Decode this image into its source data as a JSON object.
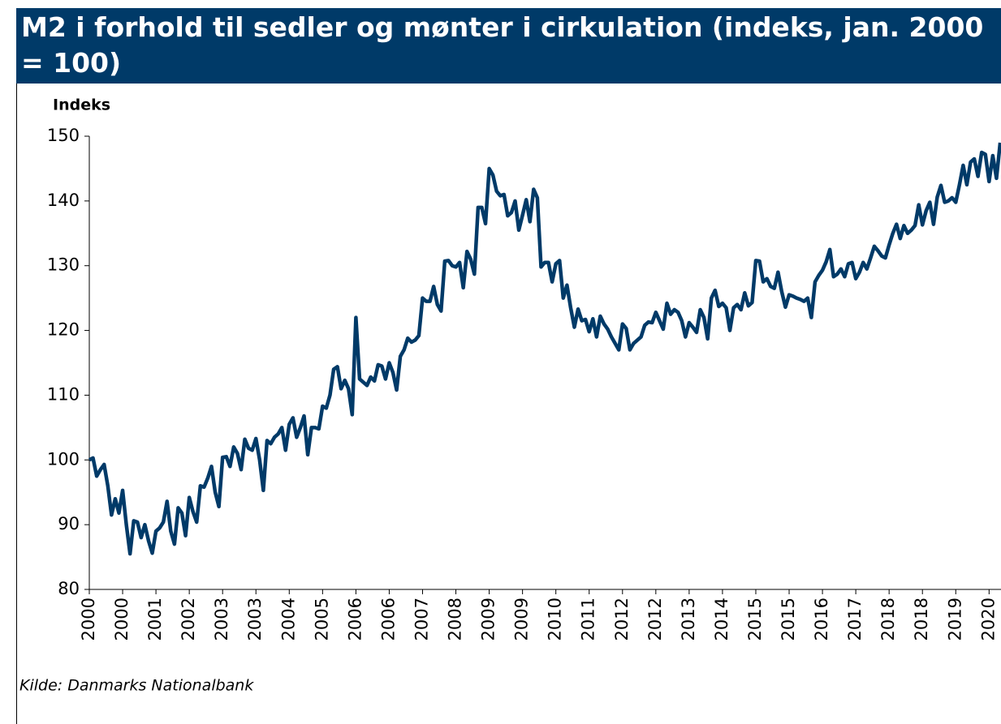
{
  "chart_data": {
    "type": "line",
    "title": "M2 i forhold til sedler og mønter i cirkulation (indeks, jan. 2000 = 100)",
    "ylabel": "Indeks",
    "source": "Kilde: Danmarks Nationalbank",
    "ylim": [
      80,
      150
    ],
    "yticks": [
      80,
      90,
      100,
      110,
      120,
      130,
      140,
      150
    ],
    "categories": [
      "2000",
      null,
      null,
      null,
      null,
      null,
      null,
      null,
      null,
      "2000",
      null,
      null,
      null,
      null,
      null,
      null,
      null,
      null,
      "2001",
      null,
      null,
      null,
      null,
      null,
      null,
      null,
      null,
      "2002",
      null,
      null,
      null,
      null,
      null,
      null,
      null,
      null,
      "2003",
      null,
      null,
      null,
      null,
      null,
      null,
      null,
      null,
      "2003",
      null,
      null,
      null,
      null,
      null,
      null,
      null,
      null,
      "2004",
      null,
      null,
      null,
      null,
      null,
      null,
      null,
      null,
      "2005",
      null,
      null,
      null,
      null,
      null,
      null,
      null,
      null,
      "2006",
      null,
      null,
      null,
      null,
      null,
      null,
      null,
      null,
      "2006",
      null,
      null,
      null,
      null,
      null,
      null,
      null,
      null,
      "2007",
      null,
      null,
      null,
      null,
      null,
      null,
      null,
      null,
      "2008",
      null,
      null,
      null,
      null,
      null,
      null,
      null,
      null,
      "2009",
      null,
      null,
      null,
      null,
      null,
      null,
      null,
      null,
      "2009",
      null,
      null,
      null,
      null,
      null,
      null,
      null,
      null,
      "2010",
      null,
      null,
      null,
      null,
      null,
      null,
      null,
      null,
      "2011",
      null,
      null,
      null,
      null,
      null,
      null,
      null,
      null,
      "2012",
      null,
      null,
      null,
      null,
      null,
      null,
      null,
      null,
      "2012",
      null,
      null,
      null,
      null,
      null,
      null,
      null,
      null,
      "2013",
      null,
      null,
      null,
      null,
      null,
      null,
      null,
      null,
      "2014",
      null,
      null,
      null,
      null,
      null,
      null,
      null,
      null,
      "2015",
      null,
      null,
      null,
      null,
      null,
      null,
      null,
      null,
      "2015",
      null,
      null,
      null,
      null,
      null,
      null,
      null,
      null,
      "2016",
      null,
      null,
      null,
      null,
      null,
      null,
      null,
      null,
      "2017",
      null,
      null,
      null,
      null,
      null,
      null,
      null,
      null,
      "2018",
      null,
      null,
      null,
      null,
      null,
      null,
      null,
      null,
      "2018",
      null,
      null,
      null,
      null,
      null,
      null,
      null,
      null,
      "2019",
      null,
      null,
      null,
      null,
      null,
      null,
      null,
      null,
      "2020",
      null,
      null,
      null
    ],
    "series": [
      {
        "name": "M2 i forhold til sedler og mønter",
        "color": "#003a68",
        "values": [
          100,
          100.3,
          97.5,
          98.5,
          99.3,
          96,
          91.5,
          94,
          91.8,
          95.3,
          90,
          85.5,
          90.6,
          90.4,
          88,
          90,
          87.5,
          85.6,
          89,
          89.5,
          90.4,
          93.6,
          89,
          87,
          92.6,
          91.8,
          88.3,
          94.2,
          92,
          90.4,
          96,
          95.8,
          97.2,
          99,
          95,
          92.8,
          100.4,
          100.5,
          99,
          102,
          101,
          98.5,
          103.2,
          101.8,
          101.5,
          103.3,
          100,
          95.3,
          103,
          102.5,
          103.5,
          104,
          105,
          101.5,
          105.5,
          106.5,
          103.5,
          105,
          106.8,
          100.8,
          105,
          105,
          104.8,
          108.3,
          108,
          110,
          114,
          114.4,
          111,
          112.3,
          111,
          107,
          122,
          112.5,
          112,
          111.5,
          112.8,
          112.2,
          114.7,
          114.5,
          112.5,
          115,
          113.5,
          110.8,
          116,
          117,
          118.8,
          118.2,
          118.5,
          119.2,
          125,
          124.5,
          124.5,
          126.8,
          124,
          123,
          130.7,
          130.8,
          130,
          129.8,
          130.5,
          126.6,
          132.2,
          131,
          128.7,
          139,
          139,
          136.5,
          145,
          144,
          141.5,
          140.8,
          141,
          137.7,
          138.2,
          140,
          135.5,
          137.8,
          140.2,
          136.8,
          141.8,
          140.5,
          129.8,
          130.5,
          130.5,
          127.5,
          130.3,
          130.8,
          125,
          127,
          123.5,
          120.5,
          123.3,
          121.5,
          121.7,
          119.8,
          121.8,
          119,
          122.2,
          121,
          120.2,
          119,
          118,
          117,
          121,
          120.3,
          117,
          118,
          118.5,
          119,
          120.8,
          121.3,
          121.2,
          122.8,
          121.5,
          120.2,
          124.2,
          122.5,
          123.2,
          122.8,
          121.5,
          119,
          121.2,
          120.5,
          119.7,
          123.2,
          122,
          118.7,
          125,
          126.2,
          123.7,
          124.2,
          123.5,
          120,
          123.5,
          124,
          123.2,
          125.8,
          123.8,
          124.3,
          130.8,
          130.7,
          127.5,
          128,
          126.8,
          126.5,
          129,
          126,
          123.6,
          125.5,
          125.3,
          125,
          124.8,
          124.5,
          125,
          122,
          127.5,
          128.5,
          129.3,
          130.6,
          132.5,
          128.3,
          128.7,
          129.5,
          128.3,
          130.3,
          130.5,
          128,
          129,
          130.5,
          129.5,
          131.2,
          133,
          132.3,
          131.5,
          131.2,
          133.2,
          135,
          136.4,
          134.2,
          136.2,
          135,
          135.5,
          136.2,
          139.4,
          136.3,
          138.5,
          139.8,
          136.4,
          140.6,
          142.4,
          139.8,
          140,
          140.5,
          139.8,
          142.5,
          145.5,
          142.5,
          146,
          146.5,
          143.8,
          147.5,
          147.2,
          143,
          147,
          143.5,
          149
        ]
      }
    ]
  }
}
